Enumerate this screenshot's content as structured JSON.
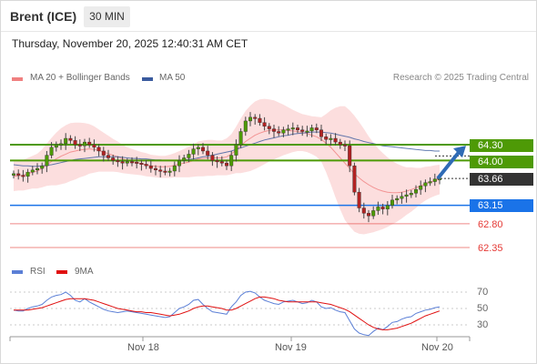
{
  "header": {
    "title": "Brent (ICE)",
    "timeframe": "30 MIN"
  },
  "datetime": "Thursday, November 20, 2025 12:40:31 AM CET",
  "legend": {
    "ma20_label": "MA 20 + Bollinger Bands",
    "ma50_label": "MA 50",
    "credit": "Research © 2025 Trading Central",
    "ma20_color": "#f08080",
    "ma50_color": "#3b5b9e"
  },
  "rsi_legend": {
    "rsi_label": "RSI",
    "ma_label": "9MA",
    "rsi_color": "#5b7fd6",
    "ma_color": "#e01010"
  },
  "levels": {
    "r2": "64.30",
    "r1": "64.00",
    "last": "63.66",
    "pivot": "63.15",
    "s1": "62.80",
    "s2": "62.35"
  },
  "colors": {
    "resistance": "#4e9a06",
    "pivot": "#1a73e8",
    "support": "#e53935",
    "last": "#333333",
    "bull": "#4e9a06",
    "bear": "#b22222"
  },
  "x_labels": [
    "Nov 18",
    "Nov 19",
    "Nov 20"
  ],
  "rsi_labels": [
    "70",
    "50",
    "30"
  ],
  "chart_data": {
    "type": "candlestick",
    "title": "Brent (ICE)",
    "interval": "30 MIN",
    "price_levels": [
      {
        "value": 64.3,
        "kind": "resistance"
      },
      {
        "value": 64.0,
        "kind": "resistance"
      },
      {
        "value": 63.66,
        "kind": "last"
      },
      {
        "value": 63.15,
        "kind": "pivot"
      },
      {
        "value": 62.8,
        "kind": "support"
      },
      {
        "value": 62.35,
        "kind": "support"
      }
    ],
    "forecast": "up toward 64.30",
    "close": [
      63.75,
      63.72,
      63.7,
      63.78,
      63.82,
      63.85,
      63.9,
      64.1,
      64.25,
      64.3,
      64.32,
      64.42,
      64.38,
      64.3,
      64.28,
      64.35,
      64.3,
      64.25,
      64.18,
      64.1,
      64.05,
      64.0,
      63.98,
      63.95,
      63.98,
      63.97,
      63.95,
      63.93,
      63.9,
      63.85,
      63.82,
      63.8,
      63.78,
      63.8,
      63.9,
      64.0,
      64.05,
      64.12,
      64.22,
      64.25,
      64.18,
      64.1,
      64.0,
      63.98,
      63.95,
      63.9,
      64.1,
      64.3,
      64.55,
      64.75,
      64.82,
      64.8,
      64.72,
      64.65,
      64.6,
      64.55,
      64.52,
      64.58,
      64.6,
      64.62,
      64.58,
      64.55,
      64.56,
      64.62,
      64.58,
      64.45,
      64.4,
      64.42,
      64.35,
      64.3,
      64.28,
      63.9,
      63.4,
      63.1,
      63.0,
      62.95,
      63.05,
      63.12,
      63.08,
      63.15,
      63.25,
      63.28,
      63.32,
      63.35,
      63.38,
      63.45,
      63.52,
      63.58,
      63.6,
      63.65,
      63.66
    ],
    "ma20": [
      63.7,
      63.71,
      63.72,
      63.75,
      63.78,
      63.8,
      63.85,
      63.92,
      63.98,
      64.03,
      64.08,
      64.12,
      64.16,
      64.18,
      64.2,
      64.21,
      64.22,
      64.21,
      64.19,
      64.16,
      64.13,
      64.1,
      64.07,
      64.03,
      64.0,
      63.98,
      63.96,
      63.94,
      63.92,
      63.9,
      63.89,
      63.88,
      63.88,
      63.89,
      63.91,
      63.93,
      63.95,
      63.97,
      64.0,
      64.03,
      64.04,
      64.05,
      64.05,
      64.05,
      64.05,
      64.07,
      64.12,
      64.2,
      64.28,
      64.36,
      64.42,
      64.48,
      64.52,
      64.55,
      64.57,
      64.58,
      64.58,
      64.58,
      64.57,
      64.56,
      64.55,
      64.53,
      64.51,
      64.48,
      64.45,
      64.4,
      64.33,
      64.25,
      64.15,
      64.05,
      63.95,
      63.85,
      63.75,
      63.67,
      63.6,
      63.54,
      63.49,
      63.45,
      63.42,
      63.4,
      63.39,
      63.39,
      63.4,
      63.42,
      63.45,
      63.48,
      63.52,
      63.56,
      63.59,
      63.62,
      63.64
    ],
    "ma50": [
      63.92,
      63.91,
      63.9,
      63.9,
      63.89,
      63.89,
      63.9,
      63.91,
      63.92,
      63.94,
      63.96,
      63.98,
      64.0,
      64.02,
      64.03,
      64.04,
      64.05,
      64.06,
      64.07,
      64.07,
      64.07,
      64.07,
      64.07,
      64.06,
      64.05,
      64.04,
      64.04,
      64.03,
      64.03,
      64.02,
      64.01,
      64.01,
      64.0,
      64.0,
      64.0,
      64.0,
      64.01,
      64.02,
      64.03,
      64.05,
      64.07,
      64.08,
      64.1,
      64.12,
      64.14,
      64.16,
      64.18,
      64.21,
      64.24,
      64.27,
      64.3,
      64.33,
      64.36,
      64.39,
      64.41,
      64.43,
      64.45,
      64.47,
      64.48,
      64.5,
      64.51,
      64.52,
      64.53,
      64.54,
      64.54,
      64.54,
      64.53,
      64.52,
      64.5,
      64.48,
      64.46,
      64.44,
      64.41,
      64.39,
      64.36,
      64.34,
      64.32,
      64.3,
      64.28,
      64.27,
      64.26,
      64.25,
      64.24,
      64.23,
      64.22,
      64.21,
      64.2,
      64.19,
      64.19,
      64.18,
      64.18
    ],
    "band_width": [
      0.28,
      0.28,
      0.29,
      0.3,
      0.31,
      0.33,
      0.36,
      0.4,
      0.45,
      0.5,
      0.53,
      0.55,
      0.55,
      0.54,
      0.52,
      0.5,
      0.47,
      0.44,
      0.4,
      0.37,
      0.34,
      0.31,
      0.29,
      0.27,
      0.25,
      0.24,
      0.23,
      0.22,
      0.22,
      0.21,
      0.21,
      0.21,
      0.21,
      0.22,
      0.23,
      0.25,
      0.27,
      0.29,
      0.31,
      0.33,
      0.34,
      0.34,
      0.34,
      0.33,
      0.33,
      0.35,
      0.38,
      0.44,
      0.52,
      0.58,
      0.62,
      0.64,
      0.64,
      0.62,
      0.59,
      0.56,
      0.52,
      0.48,
      0.44,
      0.4,
      0.37,
      0.35,
      0.35,
      0.36,
      0.38,
      0.42,
      0.55,
      0.7,
      0.85,
      0.98,
      1.08,
      1.1,
      1.1,
      1.06,
      1.0,
      0.92,
      0.85,
      0.78,
      0.72,
      0.66,
      0.6,
      0.55,
      0.5,
      0.45,
      0.42,
      0.38,
      0.34,
      0.32,
      0.3,
      0.29,
      0.28
    ],
    "rsi": [
      48,
      47,
      47,
      50,
      52,
      53,
      55,
      60,
      64,
      66,
      67,
      70,
      66,
      60,
      58,
      62,
      58,
      55,
      52,
      49,
      47,
      46,
      45,
      46,
      47,
      46,
      45,
      44,
      43,
      42,
      41,
      40,
      39,
      40,
      45,
      50,
      52,
      55,
      60,
      61,
      55,
      50,
      46,
      45,
      44,
      43,
      52,
      58,
      66,
      70,
      71,
      69,
      64,
      60,
      58,
      56,
      55,
      58,
      59,
      60,
      58,
      56,
      57,
      60,
      58,
      52,
      50,
      51,
      48,
      46,
      45,
      35,
      25,
      20,
      18,
      17,
      22,
      26,
      24,
      28,
      33,
      34,
      37,
      39,
      40,
      44,
      46,
      48,
      49,
      51,
      52
    ],
    "rsi_ma": [
      48,
      48,
      48,
      48,
      49,
      50,
      51,
      53,
      55,
      57,
      59,
      61,
      62,
      62,
      62,
      62,
      61,
      60,
      58,
      56,
      54,
      52,
      50,
      49,
      48,
      47,
      46,
      46,
      45,
      45,
      44,
      43,
      42,
      41,
      42,
      43,
      45,
      47,
      50,
      52,
      53,
      53,
      52,
      51,
      50,
      48,
      48,
      50,
      53,
      56,
      59,
      62,
      64,
      64,
      63,
      62,
      60,
      59,
      58,
      58,
      58,
      58,
      58,
      58,
      58,
      57,
      56,
      55,
      53,
      51,
      49,
      46,
      42,
      38,
      34,
      30,
      27,
      25,
      24,
      24,
      25,
      26,
      28,
      30,
      32,
      35,
      38,
      41,
      43,
      45,
      47
    ],
    "rsi_levels": [
      70,
      50,
      30
    ],
    "x_tick_labels": [
      "Nov 18",
      "Nov 19",
      "Nov 20"
    ],
    "legend": [
      "MA 20 + Bollinger Bands",
      "MA 50",
      "RSI",
      "9MA"
    ]
  }
}
